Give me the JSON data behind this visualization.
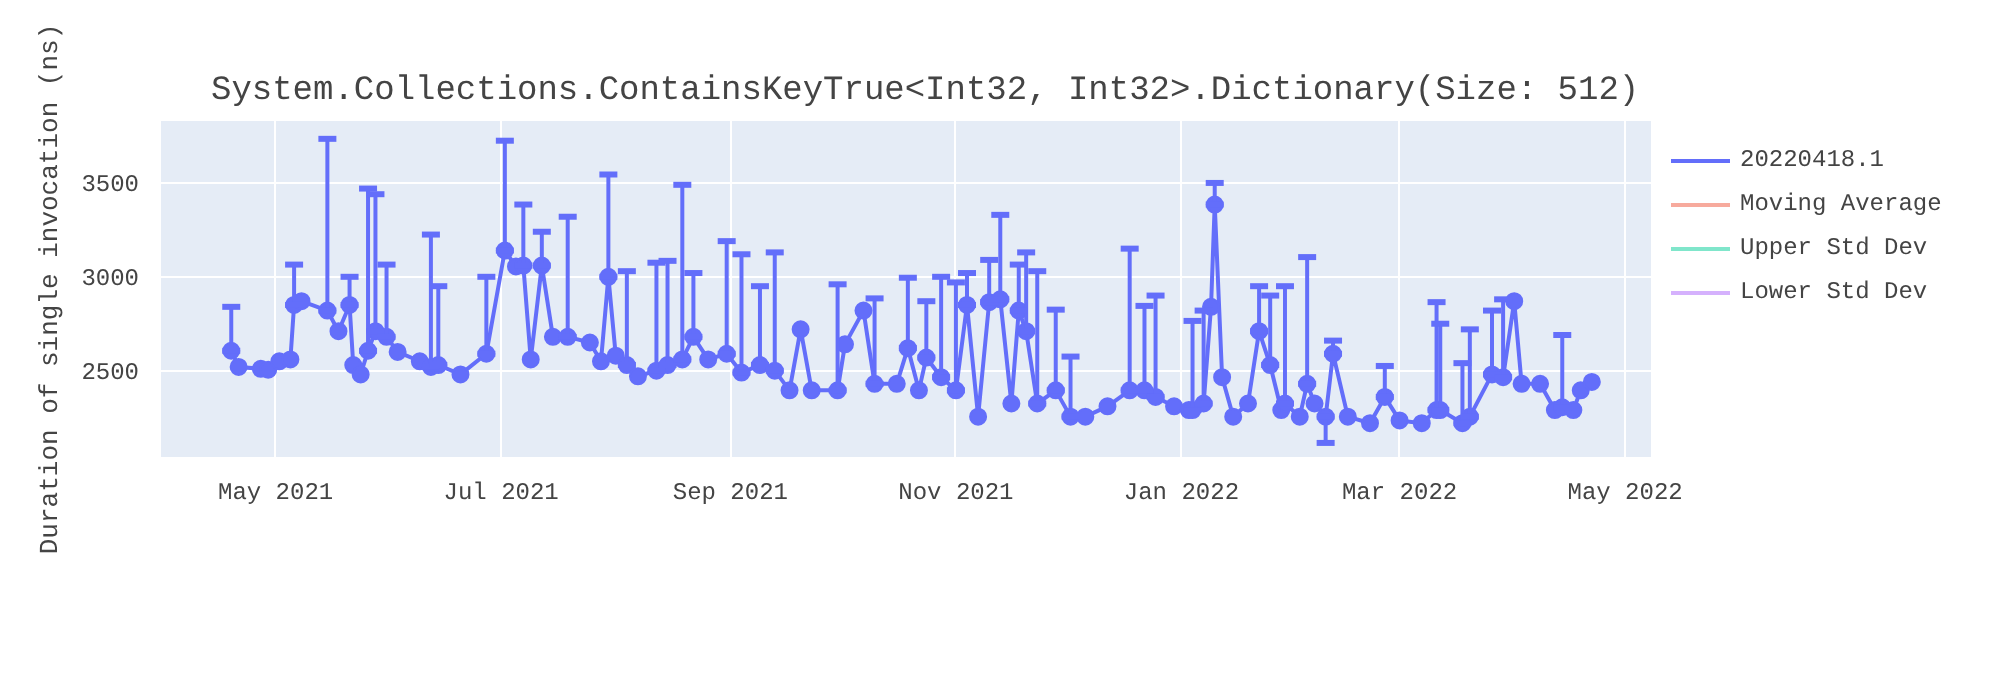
{
  "chart_data": {
    "type": "line",
    "title": "System.Collections.ContainsKeyTrue<Int32, Int32>.Dictionary(Size: 512)",
    "ylabel": "Duration of single invocation (ns)",
    "xlim": [
      "2021-03-31",
      "2022-05-08"
    ],
    "xticks": [
      {
        "value": "2021-05-01",
        "label": "May 2021"
      },
      {
        "value": "2021-07-01",
        "label": "Jul 2021"
      },
      {
        "value": "2021-09-01",
        "label": "Sep 2021"
      },
      {
        "value": "2021-11-01",
        "label": "Nov 2021"
      },
      {
        "value": "2022-01-01",
        "label": "Jan 2022"
      },
      {
        "value": "2022-03-01",
        "label": "Mar 2022"
      },
      {
        "value": "2022-05-01",
        "label": "May 2022"
      }
    ],
    "ylim": [
      2040,
      3830
    ],
    "yticks": [
      2500,
      3000,
      3500
    ],
    "grid": true,
    "legend": "right",
    "marker": "circle",
    "line_style": "solid",
    "series": [
      {
        "name": "20220418.1",
        "color": "#636efa",
        "x": [
          "2021-04-19",
          "2021-04-21",
          "2021-04-27",
          "2021-04-29",
          "2021-05-02",
          "2021-05-05",
          "2021-05-06",
          "2021-05-08",
          "2021-05-15",
          "2021-05-18",
          "2021-05-21",
          "2021-05-22",
          "2021-05-24",
          "2021-05-26",
          "2021-05-28",
          "2021-05-31",
          "2021-06-03",
          "2021-06-09",
          "2021-06-12",
          "2021-06-14",
          "2021-06-20",
          "2021-06-27",
          "2021-07-02",
          "2021-07-05",
          "2021-07-07",
          "2021-07-09",
          "2021-07-12",
          "2021-07-15",
          "2021-07-19",
          "2021-07-25",
          "2021-07-28",
          "2021-07-30",
          "2021-08-01",
          "2021-08-04",
          "2021-08-07",
          "2021-08-12",
          "2021-08-15",
          "2021-08-19",
          "2021-08-22",
          "2021-08-26",
          "2021-08-31",
          "2021-09-04",
          "2021-09-09",
          "2021-09-13",
          "2021-09-17",
          "2021-09-20",
          "2021-09-23",
          "2021-09-30",
          "2021-10-02",
          "2021-10-07",
          "2021-10-10",
          "2021-10-16",
          "2021-10-19",
          "2021-10-22",
          "2021-10-24",
          "2021-10-28",
          "2021-11-01",
          "2021-11-04",
          "2021-11-07",
          "2021-11-10",
          "2021-11-13",
          "2021-11-16",
          "2021-11-18",
          "2021-11-20",
          "2021-11-23",
          "2021-11-28",
          "2021-12-02",
          "2021-12-06",
          "2021-12-12",
          "2021-12-18",
          "2021-12-22",
          "2021-12-25",
          "2021-12-30",
          "2022-01-03",
          "2022-01-04",
          "2022-01-07",
          "2022-01-09",
          "2022-01-10",
          "2022-01-12",
          "2022-01-15",
          "2022-01-19",
          "2022-01-22",
          "2022-01-25",
          "2022-01-28",
          "2022-01-29",
          "2022-02-02",
          "2022-02-04",
          "2022-02-06",
          "2022-02-09",
          "2022-02-11",
          "2022-02-15",
          "2022-02-21",
          "2022-02-25",
          "2022-03-01",
          "2022-03-07",
          "2022-03-11",
          "2022-03-12",
          "2022-03-18",
          "2022-03-20",
          "2022-03-26",
          "2022-03-29",
          "2022-04-01",
          "2022-04-03",
          "2022-04-08",
          "2022-04-12",
          "2022-04-14",
          "2022-04-17",
          "2022-04-19",
          "2022-04-22"
        ],
        "values": [
          2606,
          2520,
          2510,
          2505,
          2550,
          2560,
          2850,
          2870,
          2820,
          2710,
          2850,
          2530,
          2480,
          2606,
          2710,
          2680,
          2600,
          2550,
          2520,
          2530,
          2480,
          2590,
          3140,
          3055,
          3060,
          2560,
          3060,
          2680,
          2680,
          2650,
          2550,
          3000,
          2580,
          2530,
          2470,
          2500,
          2530,
          2560,
          2680,
          2560,
          2590,
          2490,
          2530,
          2500,
          2395,
          2720,
          2395,
          2395,
          2640,
          2820,
          2430,
          2430,
          2620,
          2395,
          2570,
          2465,
          2395,
          2850,
          2255,
          2865,
          2880,
          2325,
          2820,
          2710,
          2325,
          2395,
          2255,
          2255,
          2310,
          2395,
          2395,
          2360,
          2310,
          2290,
          2290,
          2325,
          2840,
          3385,
          2465,
          2255,
          2325,
          2710,
          2530,
          2290,
          2325,
          2255,
          2430,
          2325,
          2255,
          2590,
          2255,
          2220,
          2360,
          2235,
          2220,
          2290,
          2290,
          2220,
          2255,
          2480,
          2465,
          2870,
          2430,
          2430,
          2290,
          2305,
          2290,
          2395,
          2440
        ],
        "errors": [
          [
            2606,
            2840
          ],
          null,
          null,
          null,
          null,
          null,
          [
            2850,
            3065
          ],
          null,
          [
            2820,
            3735
          ],
          null,
          [
            2850,
            3000
          ],
          null,
          null,
          [
            2606,
            3470
          ],
          [
            2710,
            3440
          ],
          [
            2680,
            3065
          ],
          null,
          null,
          [
            2520,
            3225
          ],
          [
            2530,
            2950
          ],
          null,
          [
            2590,
            3000
          ],
          [
            3140,
            3725
          ],
          null,
          [
            3060,
            3385
          ],
          null,
          [
            3060,
            3240
          ],
          null,
          [
            2680,
            3320
          ],
          null,
          null,
          [
            3000,
            3545
          ],
          null,
          [
            2530,
            3030
          ],
          null,
          [
            2500,
            3075
          ],
          [
            2530,
            3085
          ],
          [
            2560,
            3490
          ],
          [
            2680,
            3020
          ],
          null,
          [
            2590,
            3190
          ],
          [
            2490,
            3120
          ],
          [
            2530,
            2950
          ],
          [
            2500,
            3130
          ],
          null,
          null,
          null,
          [
            2395,
            2960
          ],
          null,
          null,
          [
            2430,
            2885
          ],
          null,
          [
            2620,
            2995
          ],
          null,
          [
            2570,
            2870
          ],
          [
            2465,
            3000
          ],
          [
            2395,
            2970
          ],
          [
            2850,
            3020
          ],
          null,
          [
            2865,
            3090
          ],
          [
            2880,
            3330
          ],
          null,
          [
            2820,
            3065
          ],
          [
            2710,
            3130
          ],
          [
            2325,
            3030
          ],
          [
            2395,
            2825
          ],
          [
            2255,
            2575
          ],
          null,
          null,
          [
            2395,
            3150
          ],
          [
            2395,
            2845
          ],
          [
            2360,
            2900
          ],
          null,
          null,
          [
            2290,
            2765
          ],
          [
            2325,
            2820
          ],
          null,
          [
            3385,
            3500
          ],
          null,
          null,
          null,
          [
            2710,
            2950
          ],
          [
            2530,
            2900
          ],
          null,
          [
            2325,
            2950
          ],
          null,
          [
            2430,
            3105
          ],
          null,
          [
            2115,
            2255
          ],
          [
            2590,
            2660
          ],
          null,
          null,
          [
            2360,
            2525
          ],
          null,
          null,
          [
            2290,
            2865
          ],
          [
            2290,
            2750
          ],
          [
            2220,
            2540
          ],
          [
            2255,
            2720
          ],
          [
            2480,
            2820
          ],
          [
            2465,
            2880
          ],
          null,
          null,
          null,
          null,
          [
            2305,
            2690
          ],
          null,
          null,
          null
        ]
      },
      {
        "name": "Moving Average",
        "color": "#f7aa9d"
      },
      {
        "name": "Upper Std Dev",
        "color": "#80e6cb"
      },
      {
        "name": "Lower Std Dev",
        "color": "#d5b1fd"
      }
    ]
  }
}
